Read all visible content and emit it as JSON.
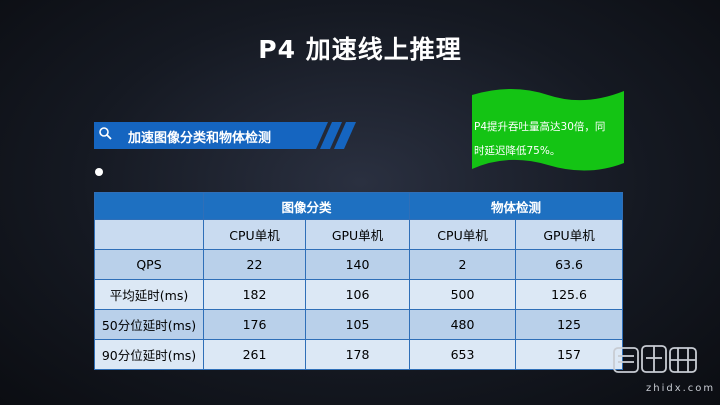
{
  "slide": {
    "title": "P4 加速线上推理"
  },
  "callout": {
    "line1": "P4提升吞吐量高达30倍，同",
    "line2": "时延迟降低75%。",
    "color": "#14c414"
  },
  "section": {
    "label": "加速图像分类和物体检测",
    "icon": "magnifier-icon",
    "color": "#1565c0"
  },
  "table": {
    "group_headers": [
      "",
      "图像分类",
      "物体检测"
    ],
    "sub_headers": [
      "",
      "CPU单机",
      "GPU单机",
      "CPU单机",
      "GPU单机"
    ],
    "rows": [
      [
        "QPS",
        "22",
        "140",
        "2",
        "63.6"
      ],
      [
        "平均延时(ms)",
        "182",
        "106",
        "500",
        "125.6"
      ],
      [
        "50分位延时(ms)",
        "176",
        "105",
        "480",
        "125"
      ],
      [
        "90分位延时(ms)",
        "261",
        "178",
        "653",
        "157"
      ]
    ],
    "header_color": "#1e70c1"
  },
  "logo": {
    "glyphs": "智東西",
    "domain": "zhidx.com"
  }
}
